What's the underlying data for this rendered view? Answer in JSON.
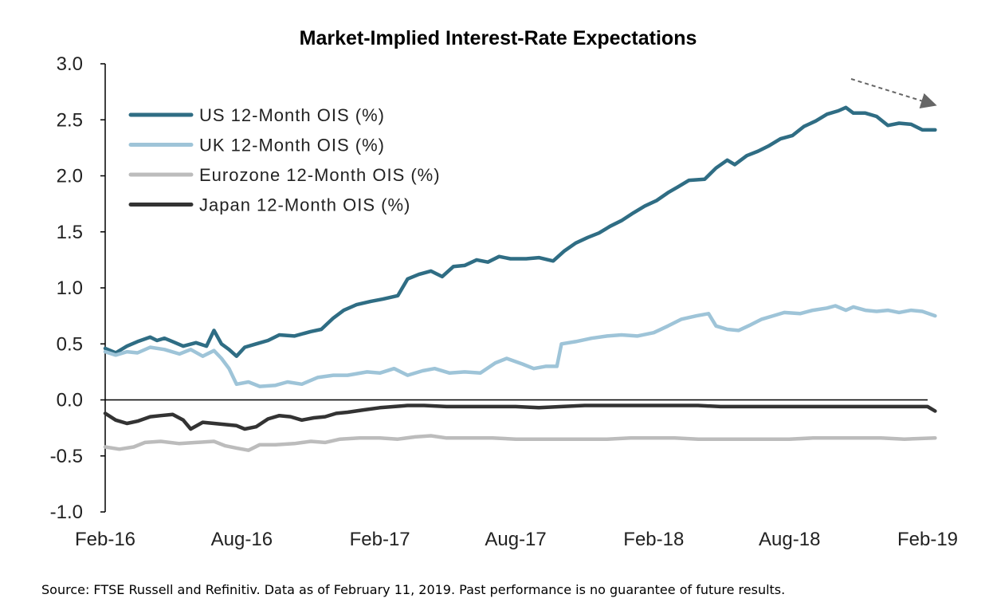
{
  "chart_data": {
    "type": "line",
    "title": "Market-Implied Interest-Rate Expectations",
    "xlabel": "",
    "ylabel": "",
    "xlim": [
      "2016-02",
      "2019-02"
    ],
    "ylim": [
      -1.0,
      3.0
    ],
    "yticks": [
      "3.0",
      "2.5",
      "2.0",
      "1.5",
      "1.0",
      "0.5",
      "0.0",
      "-0.5",
      "-1.0"
    ],
    "xticks": [
      "Feb-16",
      "Aug-16",
      "Feb-17",
      "Aug-17",
      "Feb-18",
      "Aug-18",
      "Feb-19"
    ],
    "legend_position": "top-left",
    "grid": false,
    "annotation": "dashed downward arrow near recent US peak",
    "series": [
      {
        "name": "US 12-Month OIS (%)",
        "color": "#2f6d84",
        "points": [
          [
            "2016-02-01",
            0.46
          ],
          [
            "2016-02-15",
            0.42
          ],
          [
            "2016-03-01",
            0.48
          ],
          [
            "2016-03-15",
            0.52
          ],
          [
            "2016-04-01",
            0.56
          ],
          [
            "2016-04-10",
            0.53
          ],
          [
            "2016-04-20",
            0.55
          ],
          [
            "2016-05-01",
            0.52
          ],
          [
            "2016-05-15",
            0.48
          ],
          [
            "2016-06-01",
            0.51
          ],
          [
            "2016-06-15",
            0.48
          ],
          [
            "2016-06-25",
            0.62
          ],
          [
            "2016-07-05",
            0.5
          ],
          [
            "2016-07-15",
            0.45
          ],
          [
            "2016-07-25",
            0.39
          ],
          [
            "2016-08-05",
            0.47
          ],
          [
            "2016-08-20",
            0.5
          ],
          [
            "2016-09-05",
            0.53
          ],
          [
            "2016-09-20",
            0.58
          ],
          [
            "2016-10-10",
            0.57
          ],
          [
            "2016-11-01",
            0.61
          ],
          [
            "2016-11-15",
            0.63
          ],
          [
            "2016-12-01",
            0.73
          ],
          [
            "2016-12-15",
            0.8
          ],
          [
            "2017-01-01",
            0.85
          ],
          [
            "2017-01-20",
            0.88
          ],
          [
            "2017-02-05",
            0.9
          ],
          [
            "2017-02-25",
            0.93
          ],
          [
            "2017-03-10",
            1.08
          ],
          [
            "2017-03-25",
            1.12
          ],
          [
            "2017-04-10",
            1.15
          ],
          [
            "2017-04-25",
            1.1
          ],
          [
            "2017-05-10",
            1.19
          ],
          [
            "2017-05-25",
            1.2
          ],
          [
            "2017-06-10",
            1.25
          ],
          [
            "2017-06-25",
            1.23
          ],
          [
            "2017-07-10",
            1.28
          ],
          [
            "2017-07-25",
            1.26
          ],
          [
            "2017-08-15",
            1.26
          ],
          [
            "2017-09-01",
            1.27
          ],
          [
            "2017-09-20",
            1.24
          ],
          [
            "2017-10-05",
            1.33
          ],
          [
            "2017-10-20",
            1.4
          ],
          [
            "2017-11-05",
            1.45
          ],
          [
            "2017-11-20",
            1.49
          ],
          [
            "2017-12-05",
            1.55
          ],
          [
            "2017-12-20",
            1.6
          ],
          [
            "2018-01-05",
            1.67
          ],
          [
            "2018-01-20",
            1.73
          ],
          [
            "2018-02-05",
            1.78
          ],
          [
            "2018-02-20",
            1.85
          ],
          [
            "2018-03-05",
            1.9
          ],
          [
            "2018-03-20",
            1.96
          ],
          [
            "2018-04-10",
            1.97
          ],
          [
            "2018-04-25",
            2.07
          ],
          [
            "2018-05-10",
            2.14
          ],
          [
            "2018-05-20",
            2.1
          ],
          [
            "2018-06-05",
            2.18
          ],
          [
            "2018-06-20",
            2.22
          ],
          [
            "2018-07-05",
            2.27
          ],
          [
            "2018-07-20",
            2.33
          ],
          [
            "2018-08-05",
            2.36
          ],
          [
            "2018-08-20",
            2.44
          ],
          [
            "2018-09-05",
            2.49
          ],
          [
            "2018-09-20",
            2.55
          ],
          [
            "2018-10-05",
            2.58
          ],
          [
            "2018-10-15",
            2.61
          ],
          [
            "2018-10-25",
            2.56
          ],
          [
            "2018-11-10",
            2.56
          ],
          [
            "2018-11-25",
            2.53
          ],
          [
            "2018-12-10",
            2.45
          ],
          [
            "2018-12-25",
            2.47
          ],
          [
            "2019-01-10",
            2.46
          ],
          [
            "2019-01-25",
            2.41
          ],
          [
            "2019-02-11",
            2.41
          ]
        ]
      },
      {
        "name": "UK 12-Month OIS (%)",
        "color": "#9ec4d8",
        "points": [
          [
            "2016-02-01",
            0.43
          ],
          [
            "2016-02-15",
            0.4
          ],
          [
            "2016-03-01",
            0.43
          ],
          [
            "2016-03-15",
            0.42
          ],
          [
            "2016-04-01",
            0.47
          ],
          [
            "2016-04-20",
            0.45
          ],
          [
            "2016-05-10",
            0.41
          ],
          [
            "2016-05-25",
            0.45
          ],
          [
            "2016-06-10",
            0.39
          ],
          [
            "2016-06-25",
            0.44
          ],
          [
            "2016-07-05",
            0.37
          ],
          [
            "2016-07-15",
            0.28
          ],
          [
            "2016-07-25",
            0.14
          ],
          [
            "2016-08-10",
            0.16
          ],
          [
            "2016-08-25",
            0.12
          ],
          [
            "2016-09-15",
            0.13
          ],
          [
            "2016-10-01",
            0.16
          ],
          [
            "2016-10-20",
            0.14
          ],
          [
            "2016-11-10",
            0.2
          ],
          [
            "2016-12-01",
            0.22
          ],
          [
            "2016-12-20",
            0.22
          ],
          [
            "2017-01-15",
            0.25
          ],
          [
            "2017-02-01",
            0.24
          ],
          [
            "2017-02-20",
            0.28
          ],
          [
            "2017-03-10",
            0.22
          ],
          [
            "2017-03-30",
            0.26
          ],
          [
            "2017-04-15",
            0.28
          ],
          [
            "2017-05-05",
            0.24
          ],
          [
            "2017-05-25",
            0.25
          ],
          [
            "2017-06-15",
            0.24
          ],
          [
            "2017-07-05",
            0.33
          ],
          [
            "2017-07-20",
            0.37
          ],
          [
            "2017-08-10",
            0.32
          ],
          [
            "2017-08-25",
            0.28
          ],
          [
            "2017-09-10",
            0.3
          ],
          [
            "2017-09-25",
            0.3
          ],
          [
            "2017-10-01",
            0.5
          ],
          [
            "2017-10-20",
            0.52
          ],
          [
            "2017-11-10",
            0.55
          ],
          [
            "2017-12-01",
            0.57
          ],
          [
            "2017-12-20",
            0.58
          ],
          [
            "2018-01-10",
            0.57
          ],
          [
            "2018-02-01",
            0.6
          ],
          [
            "2018-02-20",
            0.66
          ],
          [
            "2018-03-10",
            0.72
          ],
          [
            "2018-03-30",
            0.75
          ],
          [
            "2018-04-15",
            0.77
          ],
          [
            "2018-04-25",
            0.66
          ],
          [
            "2018-05-10",
            0.63
          ],
          [
            "2018-05-25",
            0.62
          ],
          [
            "2018-06-10",
            0.67
          ],
          [
            "2018-06-25",
            0.72
          ],
          [
            "2018-07-10",
            0.75
          ],
          [
            "2018-07-25",
            0.78
          ],
          [
            "2018-08-15",
            0.77
          ],
          [
            "2018-09-01",
            0.8
          ],
          [
            "2018-09-20",
            0.82
          ],
          [
            "2018-10-01",
            0.84
          ],
          [
            "2018-10-15",
            0.8
          ],
          [
            "2018-10-25",
            0.83
          ],
          [
            "2018-11-10",
            0.8
          ],
          [
            "2018-11-25",
            0.79
          ],
          [
            "2018-12-10",
            0.8
          ],
          [
            "2018-12-25",
            0.78
          ],
          [
            "2019-01-10",
            0.8
          ],
          [
            "2019-01-25",
            0.79
          ],
          [
            "2019-02-11",
            0.75
          ]
        ]
      },
      {
        "name": "Eurozone 12-Month OIS (%)",
        "color": "#bcbcbc",
        "points": [
          [
            "2016-02-01",
            -0.42
          ],
          [
            "2016-02-20",
            -0.44
          ],
          [
            "2016-03-10",
            -0.42
          ],
          [
            "2016-03-25",
            -0.38
          ],
          [
            "2016-04-15",
            -0.37
          ],
          [
            "2016-05-10",
            -0.39
          ],
          [
            "2016-06-01",
            -0.38
          ],
          [
            "2016-06-25",
            -0.37
          ],
          [
            "2016-07-10",
            -0.41
          ],
          [
            "2016-07-25",
            -0.43
          ],
          [
            "2016-08-10",
            -0.45
          ],
          [
            "2016-08-25",
            -0.4
          ],
          [
            "2016-09-15",
            -0.4
          ],
          [
            "2016-10-10",
            -0.39
          ],
          [
            "2016-11-01",
            -0.37
          ],
          [
            "2016-11-20",
            -0.38
          ],
          [
            "2016-12-10",
            -0.35
          ],
          [
            "2017-01-05",
            -0.34
          ],
          [
            "2017-02-01",
            -0.34
          ],
          [
            "2017-02-25",
            -0.35
          ],
          [
            "2017-03-20",
            -0.33
          ],
          [
            "2017-04-10",
            -0.32
          ],
          [
            "2017-05-01",
            -0.34
          ],
          [
            "2017-06-01",
            -0.34
          ],
          [
            "2017-07-01",
            -0.34
          ],
          [
            "2017-08-01",
            -0.35
          ],
          [
            "2017-09-01",
            -0.35
          ],
          [
            "2017-10-01",
            -0.35
          ],
          [
            "2017-11-01",
            -0.35
          ],
          [
            "2017-12-01",
            -0.35
          ],
          [
            "2018-01-01",
            -0.34
          ],
          [
            "2018-02-01",
            -0.34
          ],
          [
            "2018-03-01",
            -0.34
          ],
          [
            "2018-04-01",
            -0.35
          ],
          [
            "2018-05-01",
            -0.35
          ],
          [
            "2018-06-01",
            -0.35
          ],
          [
            "2018-07-01",
            -0.35
          ],
          [
            "2018-08-01",
            -0.35
          ],
          [
            "2018-09-01",
            -0.34
          ],
          [
            "2018-10-01",
            -0.34
          ],
          [
            "2018-11-01",
            -0.34
          ],
          [
            "2018-12-01",
            -0.34
          ],
          [
            "2019-01-01",
            -0.35
          ],
          [
            "2019-02-11",
            -0.34
          ]
        ]
      },
      {
        "name": "Japan 12-Month OIS (%)",
        "color": "#333333",
        "points": [
          [
            "2016-02-01",
            -0.12
          ],
          [
            "2016-02-15",
            -0.18
          ],
          [
            "2016-03-01",
            -0.21
          ],
          [
            "2016-03-15",
            -0.19
          ],
          [
            "2016-04-01",
            -0.15
          ],
          [
            "2016-04-15",
            -0.14
          ],
          [
            "2016-05-01",
            -0.13
          ],
          [
            "2016-05-15",
            -0.18
          ],
          [
            "2016-05-25",
            -0.26
          ],
          [
            "2016-06-10",
            -0.2
          ],
          [
            "2016-06-25",
            -0.21
          ],
          [
            "2016-07-10",
            -0.22
          ],
          [
            "2016-07-25",
            -0.23
          ],
          [
            "2016-08-05",
            -0.26
          ],
          [
            "2016-08-20",
            -0.24
          ],
          [
            "2016-09-05",
            -0.17
          ],
          [
            "2016-09-20",
            -0.14
          ],
          [
            "2016-10-05",
            -0.15
          ],
          [
            "2016-10-20",
            -0.18
          ],
          [
            "2016-11-05",
            -0.16
          ],
          [
            "2016-11-20",
            -0.15
          ],
          [
            "2016-12-05",
            -0.12
          ],
          [
            "2016-12-20",
            -0.11
          ],
          [
            "2017-01-10",
            -0.09
          ],
          [
            "2017-02-01",
            -0.07
          ],
          [
            "2017-02-20",
            -0.06
          ],
          [
            "2017-03-10",
            -0.05
          ],
          [
            "2017-04-01",
            -0.05
          ],
          [
            "2017-05-01",
            -0.06
          ],
          [
            "2017-06-01",
            -0.06
          ],
          [
            "2017-07-01",
            -0.06
          ],
          [
            "2017-08-01",
            -0.06
          ],
          [
            "2017-09-01",
            -0.07
          ],
          [
            "2017-10-01",
            -0.06
          ],
          [
            "2017-11-01",
            -0.05
          ],
          [
            "2017-12-01",
            -0.05
          ],
          [
            "2018-01-01",
            -0.05
          ],
          [
            "2018-02-01",
            -0.05
          ],
          [
            "2018-03-01",
            -0.05
          ],
          [
            "2018-04-01",
            -0.05
          ],
          [
            "2018-05-01",
            -0.06
          ],
          [
            "2018-06-01",
            -0.06
          ],
          [
            "2018-07-01",
            -0.06
          ],
          [
            "2018-08-01",
            -0.06
          ],
          [
            "2018-09-01",
            -0.06
          ],
          [
            "2018-10-01",
            -0.06
          ],
          [
            "2018-11-01",
            -0.06
          ],
          [
            "2018-12-01",
            -0.06
          ],
          [
            "2019-01-01",
            -0.06
          ],
          [
            "2019-02-01",
            -0.06
          ],
          [
            "2019-02-11",
            -0.1
          ]
        ]
      }
    ]
  },
  "footer": {
    "source_note": "Source: FTSE Russell and Refinitiv. Data as of February 11, 2019. Past performance is no guarantee of future results."
  }
}
